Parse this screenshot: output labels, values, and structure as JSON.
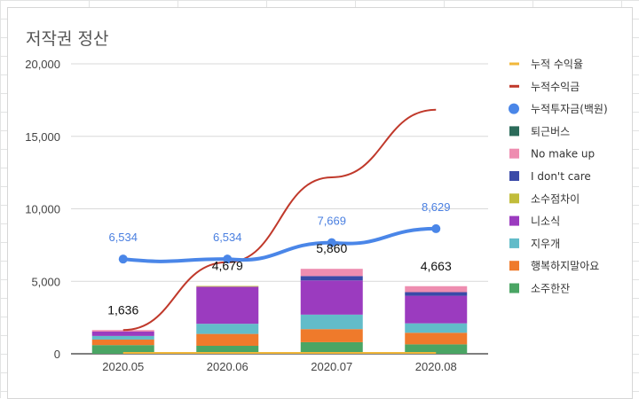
{
  "chart_data": {
    "type": "bar",
    "title": "저작권 정산",
    "categories": [
      "2020.05",
      "2020.06",
      "2020.07",
      "2020.08"
    ],
    "ylim": [
      0,
      20000
    ],
    "yticks": [
      "0",
      "5,000",
      "10,000",
      "15,000",
      "20,000"
    ],
    "grid": true,
    "legend_position": "right",
    "stacked_series": [
      {
        "name": "소주한잔",
        "color": "#4aa564",
        "values": [
          600,
          550,
          800,
          650
        ]
      },
      {
        "name": "행복하지말아요",
        "color": "#ef7a2b",
        "values": [
          380,
          820,
          900,
          800
        ]
      },
      {
        "name": "지우개",
        "color": "#62bcc9",
        "values": [
          250,
          700,
          1000,
          650
        ]
      },
      {
        "name": "니소식",
        "color": "#9b3bbf",
        "values": [
          300,
          2560,
          2360,
          1900
        ]
      },
      {
        "name": "소수점차이",
        "color": "#c1bc3a",
        "values": [
          0,
          49,
          0,
          0
        ]
      },
      {
        "name": "I don't care",
        "color": "#3a4aa8",
        "values": [
          0,
          0,
          300,
          250
        ]
      },
      {
        "name": "No make up",
        "color": "#ee8db0",
        "values": [
          106,
          0,
          500,
          413
        ]
      },
      {
        "name": "퇴근버스",
        "color": "#2b6b5a",
        "values": [
          0,
          0,
          0,
          0
        ]
      }
    ],
    "bar_totals": [
      "1,636",
      "4,679",
      "5,860",
      "4,663"
    ],
    "line_series": [
      {
        "name": "누적수익금",
        "color": "#c0392b",
        "values": [
          1636,
          6315,
          12175,
          16838
        ]
      },
      {
        "name": "누적투자금(백원)",
        "color": "#4a86e8",
        "values": [
          6534,
          6534,
          7669,
          8629
        ],
        "labels": [
          "6,534",
          "6,534",
          "7,669",
          "8,629"
        ]
      },
      {
        "name": "누적 수익율",
        "color": "#f1b73a",
        "values": [
          0,
          0,
          0,
          0
        ]
      }
    ],
    "legend": [
      {
        "name": "누적 수익율",
        "color": "#f1b73a",
        "marker": "line"
      },
      {
        "name": "누적수익금",
        "color": "#c0392b",
        "marker": "line"
      },
      {
        "name": "누적투자금(백원)",
        "color": "#4a86e8",
        "marker": "circle"
      },
      {
        "name": "퇴근버스",
        "color": "#2b6b5a",
        "marker": "square"
      },
      {
        "name": "No make up",
        "color": "#ee8db0",
        "marker": "square"
      },
      {
        "name": "I don't care",
        "color": "#3a4aa8",
        "marker": "square"
      },
      {
        "name": "소수점차이",
        "color": "#c1bc3a",
        "marker": "square"
      },
      {
        "name": "니소식",
        "color": "#9b3bbf",
        "marker": "square"
      },
      {
        "name": "지우개",
        "color": "#62bcc9",
        "marker": "square"
      },
      {
        "name": "행복하지말아요",
        "color": "#ef7a2b",
        "marker": "square"
      },
      {
        "name": "소주한잔",
        "color": "#4aa564",
        "marker": "square"
      }
    ]
  }
}
